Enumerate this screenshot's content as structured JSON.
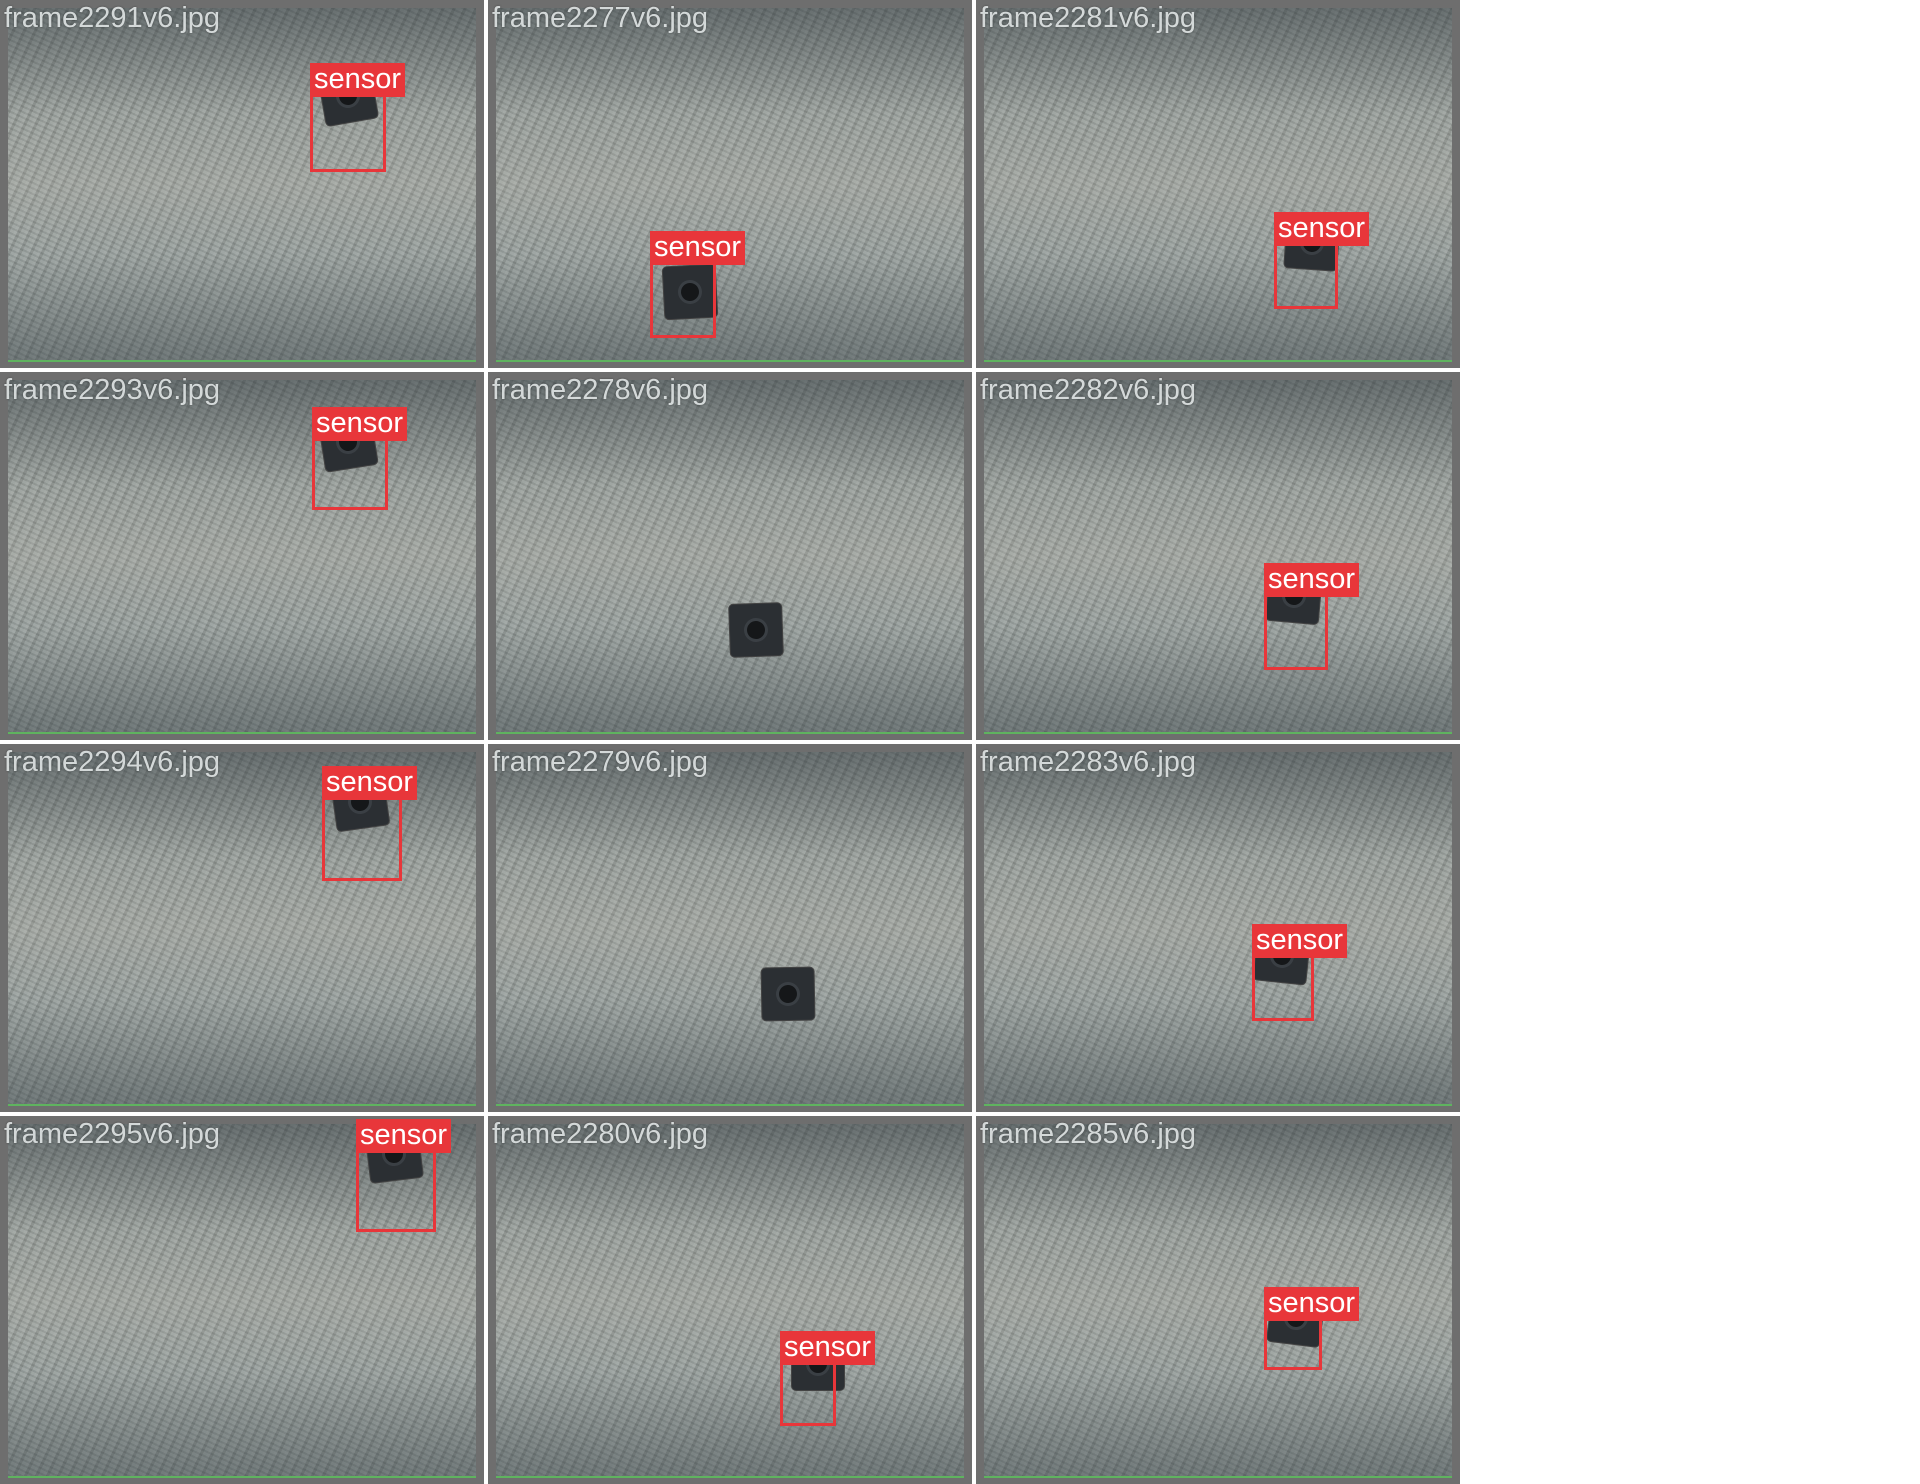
{
  "colors": {
    "tile_border": "#6e6e6e",
    "bbox": "#e8363a",
    "label_text": "#ffffff",
    "filename_text": "#ebf0f0",
    "ground_line": "#5fb35f"
  },
  "tiles": [
    {
      "filename": "frame2291v6.jpg",
      "detection": "sensor"
    },
    {
      "filename": "frame2277v6.jpg",
      "detection": "sensor"
    },
    {
      "filename": "frame2281v6.jpg",
      "detection": "sensor"
    },
    {
      "filename": "frame2293v6.jpg",
      "detection": "sensor"
    },
    {
      "filename": "frame2278v6.jpg",
      "detection": null
    },
    {
      "filename": "frame2282v6.jpg",
      "detection": "sensor"
    },
    {
      "filename": "frame2294v6.jpg",
      "detection": "sensor"
    },
    {
      "filename": "frame2279v6.jpg",
      "detection": null
    },
    {
      "filename": "frame2283v6.jpg",
      "detection": "sensor"
    },
    {
      "filename": "frame2295v6.jpg",
      "detection": "sensor"
    },
    {
      "filename": "frame2280v6.jpg",
      "detection": "sensor"
    },
    {
      "filename": "frame2285v6.jpg",
      "detection": "sensor"
    }
  ]
}
